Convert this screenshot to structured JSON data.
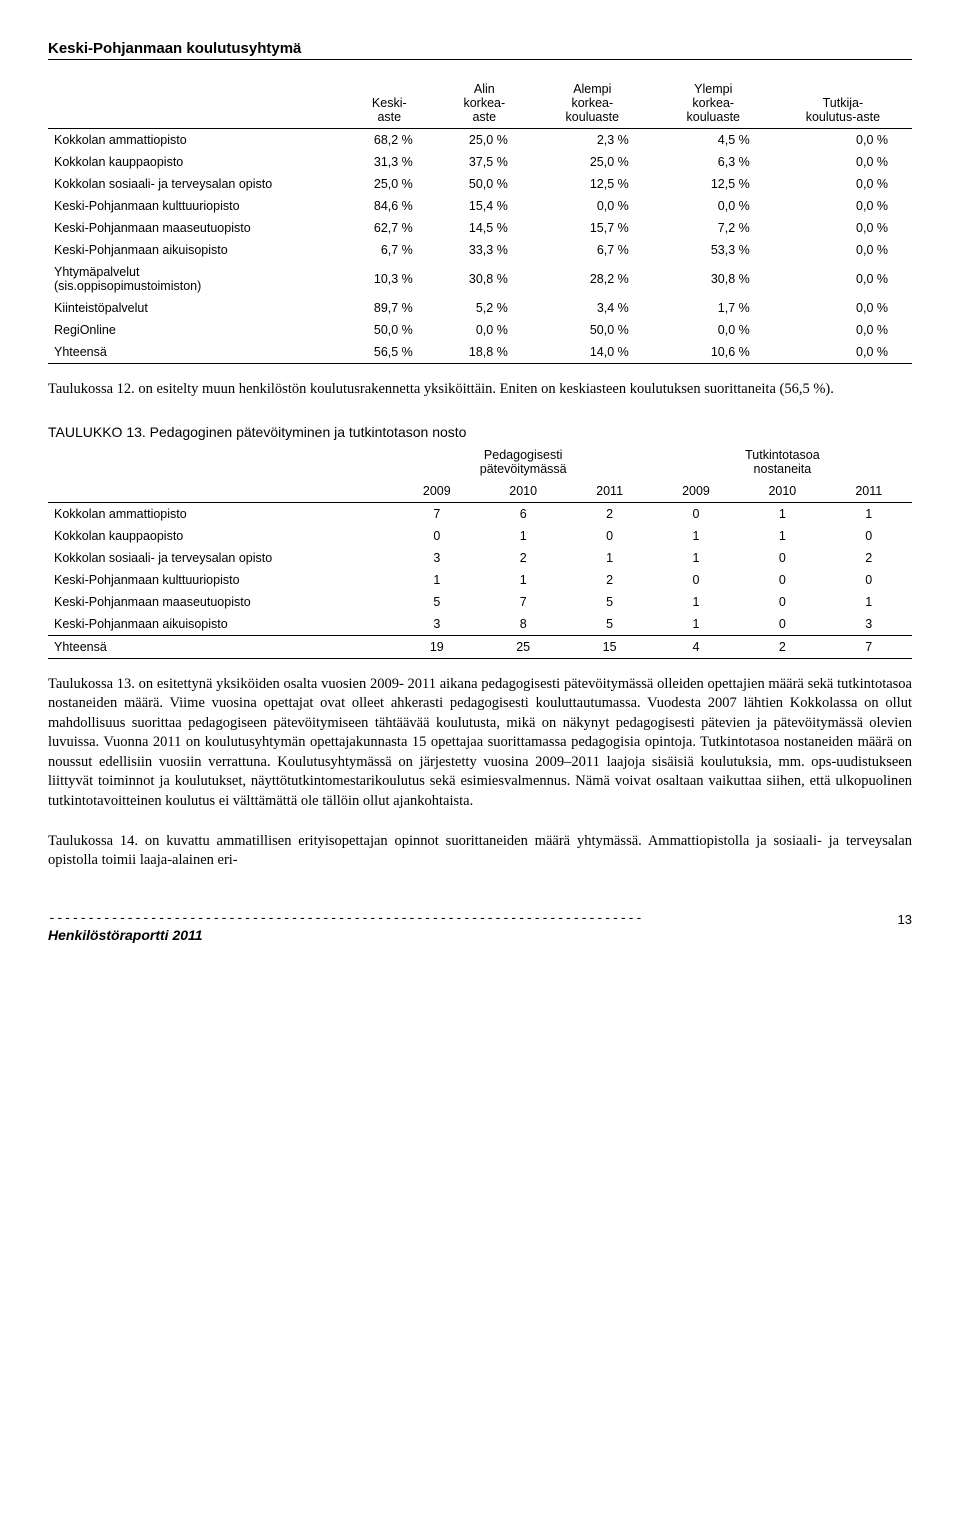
{
  "page": {
    "header": "Keski-Pohjanmaan koulutusyhtymä",
    "footer_label": "Henkilöstöraportti 2011",
    "page_number": "13",
    "dashline": "----------------------------------------------------------------------------"
  },
  "table1": {
    "columns": [
      "",
      "Keski-\naste",
      "Alin\nkorkea-\naste",
      "Alempi\nkorkea-\nkouluaste",
      "Ylempi\nkorkea-\nkouluaste",
      "Tutkija-\nkoulutus-aste"
    ],
    "rows": [
      [
        "Kokkolan ammattiopisto",
        "68,2 %",
        "25,0 %",
        "2,3 %",
        "4,5 %",
        "0,0 %"
      ],
      [
        "Kokkolan kauppaopisto",
        "31,3 %",
        "37,5 %",
        "25,0 %",
        "6,3 %",
        "0,0 %"
      ],
      [
        "Kokkolan sosiaali- ja terveysalan opisto",
        "25,0 %",
        "50,0 %",
        "12,5 %",
        "12,5 %",
        "0,0 %"
      ],
      [
        "Keski-Pohjanmaan kulttuuriopisto",
        "84,6 %",
        "15,4 %",
        "0,0 %",
        "0,0 %",
        "0,0 %"
      ],
      [
        "Keski-Pohjanmaan maaseutuopisto",
        "62,7 %",
        "14,5 %",
        "15,7 %",
        "7,2 %",
        "0,0 %"
      ],
      [
        "Keski-Pohjanmaan aikuisopisto",
        "6,7 %",
        "33,3 %",
        "6,7 %",
        "53,3 %",
        "0,0 %"
      ],
      [
        "Yhtymäpalvelut\n(sis.oppisopimustoimiston)",
        "10,3 %",
        "30,8 %",
        "28,2 %",
        "30,8 %",
        "0,0 %"
      ],
      [
        "Kiinteistöpalvelut",
        "89,7 %",
        "5,2 %",
        "3,4 %",
        "1,7 %",
        "0,0 %"
      ],
      [
        "RegiOnline",
        "50,0 %",
        "0,0 %",
        "50,0 %",
        "0,0 %",
        "0,0 %"
      ],
      [
        "Yhteensä",
        "56,5 %",
        "18,8 %",
        "14,0 %",
        "10,6 %",
        "0,0 %"
      ]
    ],
    "col_widths": [
      "34%",
      "11%",
      "11%",
      "14%",
      "14%",
      "16%"
    ]
  },
  "para1": "Taulukossa 12. on esitelty muun henkilöstön koulutusrakennetta yksiköittäin. Eniten on keskiasteen koulutuksen suorittaneita (56,5 %).",
  "t13_title": "TAULUKKO 13. Pedagoginen pätevöityminen ja tutkintotason nosto",
  "table2": {
    "group_headers": [
      "Pedagogisesti\npätevöitymässä",
      "Tutkintotasoa\nnostaneita"
    ],
    "year_headers": [
      "2009",
      "2010",
      "2011",
      "2009",
      "2010",
      "2011"
    ],
    "rows": [
      [
        "Kokkolan ammattiopisto",
        "7",
        "6",
        "2",
        "0",
        "1",
        "1"
      ],
      [
        "Kokkolan kauppaopisto",
        "0",
        "1",
        "0",
        "1",
        "1",
        "0"
      ],
      [
        "Kokkolan sosiaali- ja terveysalan opisto",
        "3",
        "2",
        "1",
        "1",
        "0",
        "2"
      ],
      [
        "Keski-Pohjanmaan kulttuuriopisto",
        "1",
        "1",
        "2",
        "0",
        "0",
        "0"
      ],
      [
        "Keski-Pohjanmaan maaseutuopisto",
        "5",
        "7",
        "5",
        "1",
        "0",
        "1"
      ],
      [
        "Keski-Pohjanmaan aikuisopisto",
        "3",
        "8",
        "5",
        "1",
        "0",
        "3"
      ]
    ],
    "total": [
      "Yhteensä",
      "19",
      "25",
      "15",
      "4",
      "2",
      "7"
    ]
  },
  "para2": "Taulukossa 13. on esitettynä yksiköiden osalta vuosien 2009- 2011 aikana pedagogisesti pätevöitymässä olleiden opettajien määrä sekä tutkintotasoa nostaneiden määrä. Viime vuosina opettajat ovat olleet ahkerasti pedagogisesti kouluttautumassa. Vuodesta 2007 lähtien Kokkolassa on ollut mahdollisuus suorittaa pedagogiseen pätevöitymiseen tähtäävää koulutusta, mikä on näkynyt pedagogisesti pätevien ja pätevöitymässä olevien luvuissa. Vuonna 2011 on koulutusyhtymän opettajakunnasta 15 opettajaa suorittamassa pedagogisia opintoja. Tutkintotasoa nostaneiden määrä on noussut edellisiin vuosiin verrattuna.  Koulutusyhtymässä on järjestetty vuosina 2009–2011 laajoja sisäisiä koulutuksia, mm.  ops-uudistukseen liittyvät toiminnot ja koulutukset, näyttötutkintomestarikoulutus sekä esimiesvalmennus. Nämä voivat osaltaan vaikuttaa siihen, että ulkopuolinen tutkintotavoitteinen koulutus ei välttämättä ole tällöin ollut ajankohtaista.",
  "para3": "Taulukossa 14. on kuvattu ammatillisen erityisopettajan opinnot suorittaneiden määrä yhtymässä. Ammattiopistolla ja sosiaali- ja terveysalan opistolla toimii laaja-alainen eri-",
  "colors": {
    "text": "#000000",
    "background": "#ffffff",
    "border": "#000000"
  }
}
